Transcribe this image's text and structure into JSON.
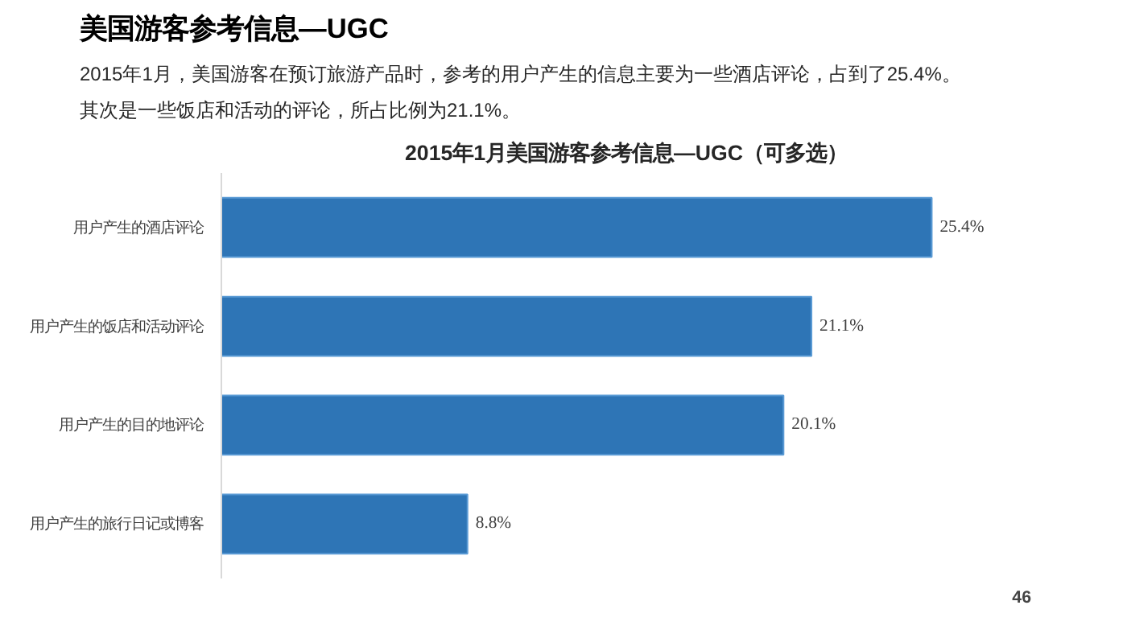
{
  "chart_data": {
    "type": "bar",
    "orientation": "horizontal",
    "title": "美国游客参考信息—UGC",
    "subtitle": "2015年1月，美国游客在预订旅游产品时，参考的用户产生的信息主要为一些酒店评论，占到了25.4%。其次是一些饭店和活动的评论，所占比例为21.1%。",
    "annotations": [
      "2015年1月美国游客参考信息—UGC（可多选）",
      "46"
    ],
    "categories": [
      "用户产生的酒店评论",
      "用户产生的饭店和活动评论",
      "用户产生的目的地评论",
      "用户产生的旅行日记或博客"
    ],
    "values": [
      25.4,
      21.1,
      20.1,
      8.8
    ],
    "value_labels": [
      "25.4%",
      "21.1%",
      "20.1%",
      "8.8%"
    ],
    "color": "#2e75b6",
    "grid": false
  }
}
